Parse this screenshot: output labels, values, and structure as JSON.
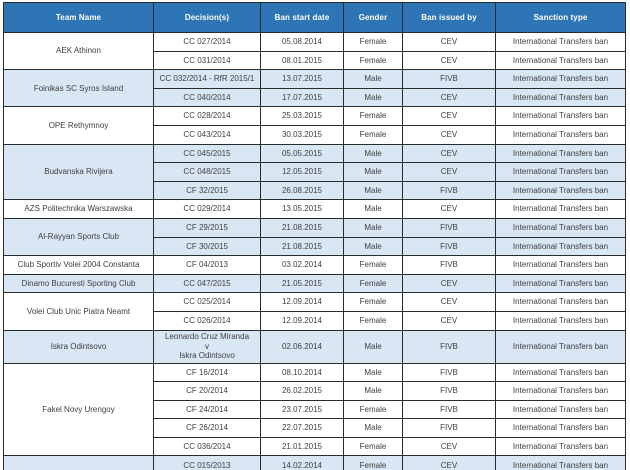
{
  "colors": {
    "header_bg": "#2E75B6",
    "header_text": "#FFFFFF",
    "band_row_bg": "#D9E6F4",
    "row_bg": "#FFFFFF",
    "border": "#2B2B2B",
    "cell_text": "#3F3F3F"
  },
  "table": {
    "columns": [
      {
        "key": "team-name",
        "label": "Team Name"
      },
      {
        "key": "decisions",
        "label": "Decision(s)"
      },
      {
        "key": "ban-start-date",
        "label": "Ban start date"
      },
      {
        "key": "gender",
        "label": "Gender"
      },
      {
        "key": "ban-issued-by",
        "label": "Ban issued by"
      },
      {
        "key": "sanction-type",
        "label": "Sanction type"
      }
    ],
    "groups": [
      {
        "team": "AEK Athinon",
        "rows": [
          {
            "decision": "CC 027/2014",
            "ban_start_date": "05.08.2014",
            "gender": "Female",
            "ban_issued_by": "CEV",
            "sanction_type": "International Transfers ban"
          },
          {
            "decision": "CC 031/2014",
            "ban_start_date": "08.01.2015",
            "gender": "Female",
            "ban_issued_by": "CEV",
            "sanction_type": "International Transfers ban"
          }
        ]
      },
      {
        "team": "Foinikas SC Syros Island",
        "rows": [
          {
            "decision": "CC 032/2014 - RfR 2015/1",
            "ban_start_date": "13.07.2015",
            "gender": "Male",
            "ban_issued_by": "FIVB",
            "sanction_type": "International Transfers ban"
          },
          {
            "decision": "CC 040/2014",
            "ban_start_date": "17.07.2015",
            "gender": "Male",
            "ban_issued_by": "CEV",
            "sanction_type": "International Transfers ban"
          }
        ]
      },
      {
        "team": "OPE Rethymnoy",
        "rows": [
          {
            "decision": "CC 028/2014",
            "ban_start_date": "25.03.2015",
            "gender": "Female",
            "ban_issued_by": "CEV",
            "sanction_type": "International Transfers ban"
          },
          {
            "decision": "CC 043/2014",
            "ban_start_date": "30.03.2015",
            "gender": "Female",
            "ban_issued_by": "CEV",
            "sanction_type": "International Transfers ban"
          }
        ]
      },
      {
        "team": "Budvanska Rivijera",
        "rows": [
          {
            "decision": "CC 045/2015",
            "ban_start_date": "05.05.2015",
            "gender": "Male",
            "ban_issued_by": "CEV",
            "sanction_type": "International Transfers ban"
          },
          {
            "decision": "CC 048/2015",
            "ban_start_date": "12.05.2015",
            "gender": "Male",
            "ban_issued_by": "CEV",
            "sanction_type": "International Transfers ban"
          },
          {
            "decision": "CF 32/2015",
            "ban_start_date": "26.08.2015",
            "gender": "Male",
            "ban_issued_by": "FIVB",
            "sanction_type": "International Transfers ban"
          }
        ]
      },
      {
        "team": "AZS Politechnika Warszawska",
        "rows": [
          {
            "decision": "CC 029/2014",
            "ban_start_date": "13.05.2015",
            "gender": "Male",
            "ban_issued_by": "CEV",
            "sanction_type": "International Transfers ban"
          }
        ]
      },
      {
        "team": "Al-Rayyan Sports Club",
        "rows": [
          {
            "decision": "CF 29/2015",
            "ban_start_date": "21.08.2015",
            "gender": "Male",
            "ban_issued_by": "FIVB",
            "sanction_type": "International Transfers ban"
          },
          {
            "decision": "CF 30/2015",
            "ban_start_date": "21.08.2015",
            "gender": "Male",
            "ban_issued_by": "FIVB",
            "sanction_type": "International Transfers ban"
          }
        ]
      },
      {
        "team": "Club Sportiv Volei 2004 Constanta",
        "rows": [
          {
            "decision": "CF 04/2013",
            "ban_start_date": "03.02.2014",
            "gender": "Female",
            "ban_issued_by": "FIVB",
            "sanction_type": "International Transfers ban"
          }
        ]
      },
      {
        "team": "Dinamo Bucuresti Sporting Club",
        "rows": [
          {
            "decision": "CC 047/2015",
            "ban_start_date": "21.05.2015",
            "gender": "Female",
            "ban_issued_by": "CEV",
            "sanction_type": "International Transfers ban"
          }
        ]
      },
      {
        "team": "Volei Club Unic Piatra Neamt",
        "rows": [
          {
            "decision": "CC 025/2014",
            "ban_start_date": "12.09.2014",
            "gender": "Female",
            "ban_issued_by": "CEV",
            "sanction_type": "International Transfers ban"
          },
          {
            "decision": "CC 026/2014",
            "ban_start_date": "12.09.2014",
            "gender": "Female",
            "ban_issued_by": "CEV",
            "sanction_type": "International Transfers ban"
          }
        ]
      },
      {
        "team": "Iskra Odintsovo",
        "rows": [
          {
            "decision": [
              "Leonardo Cruz Miranda",
              "v",
              "Iskra Odintsovo"
            ],
            "ban_start_date": "02.06.2014",
            "gender": "Male",
            "ban_issued_by": "FIVB",
            "sanction_type": "International Transfers ban"
          }
        ]
      },
      {
        "team": "Fakel Novy Urengoy",
        "rows": [
          {
            "decision": "CF 16/2014",
            "ban_start_date": "08.10.2014",
            "gender": "Male",
            "ban_issued_by": "FIVB",
            "sanction_type": "International Transfers ban"
          },
          {
            "decision": "CF 20/2014",
            "ban_start_date": "26.02.2015",
            "gender": "Male",
            "ban_issued_by": "FIVB",
            "sanction_type": "International Transfers ban"
          },
          {
            "decision": "CF 24/2014",
            "ban_start_date": "23.07.2015",
            "gender": "Female",
            "ban_issued_by": "FIVB",
            "sanction_type": "International Transfers ban"
          },
          {
            "decision": "CF 26/2014",
            "ban_start_date": "22.07.2015",
            "gender": "Male",
            "ban_issued_by": "FIVB",
            "sanction_type": "International Transfers ban"
          },
          {
            "decision": "CC 036/2014",
            "ban_start_date": "21.01.2015",
            "gender": "Female",
            "ban_issued_by": "CEV",
            "sanction_type": "International Transfers ban"
          }
        ]
      },
      {
        "team": "",
        "rows": [
          {
            "decision": "CC 015/2013",
            "ban_start_date": "14.02.2014",
            "gender": "Female",
            "ban_issued_by": "CEV",
            "sanction_type": "International Transfers ban"
          }
        ]
      }
    ]
  }
}
